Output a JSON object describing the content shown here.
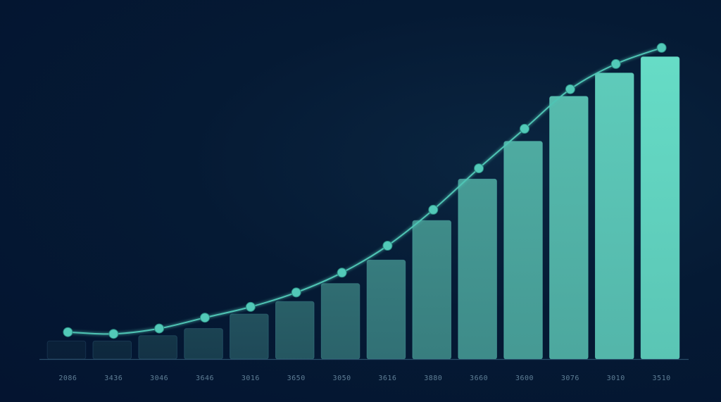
{
  "chart_data": {
    "type": "bar",
    "overlay": "line",
    "categories": [
      "2086",
      "3436",
      "3046",
      "3646",
      "3016",
      "3650",
      "3050",
      "3616",
      "3880",
      "3660",
      "3600",
      "3076",
      "3010",
      "3510"
    ],
    "values": [
      5,
      5,
      6.5,
      8.5,
      12.5,
      16,
      21,
      27.5,
      38.5,
      50,
      60.5,
      73,
      79.5,
      84
    ],
    "line_values": [
      7.5,
      7,
      8.5,
      11.5,
      14.5,
      18.5,
      24,
      31.5,
      41.5,
      53,
      64,
      75,
      82,
      86.5
    ],
    "ylim": [
      0,
      90
    ],
    "title": "",
    "xlabel": "",
    "ylabel": "",
    "grid": false,
    "legend": "none",
    "colors": {
      "background": "#041630",
      "bar_start": "#0a2038",
      "bar_end": "#66dcc6",
      "line": "#4fc4b4",
      "marker": "#52c9b8",
      "axis": "#2a4e6a",
      "tick_text": "#5f7f96"
    }
  }
}
